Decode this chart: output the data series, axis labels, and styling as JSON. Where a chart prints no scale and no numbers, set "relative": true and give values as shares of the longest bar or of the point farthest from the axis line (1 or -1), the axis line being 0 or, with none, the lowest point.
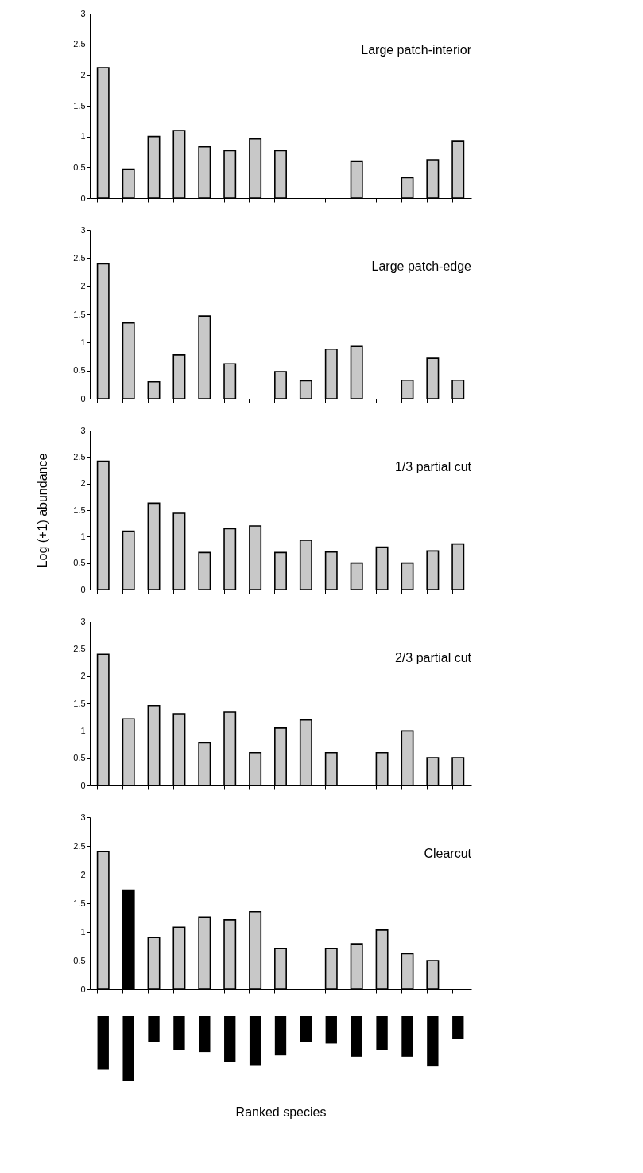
{
  "chart_data": [
    {
      "type": "bar",
      "title": "Large patch-interior",
      "categories": [
        null,
        null,
        null,
        null,
        null,
        null,
        null,
        null,
        null,
        null,
        null,
        null,
        null,
        null,
        null
      ],
      "values": [
        2.12,
        0.47,
        1.0,
        1.1,
        0.83,
        0.77,
        0.96,
        0.77,
        null,
        null,
        0.6,
        null,
        0.33,
        0.62,
        0.93
      ],
      "color": "#c8c8c8",
      "ylim": [
        0,
        3
      ],
      "yticks": [
        0,
        0.5,
        1,
        1.5,
        2,
        2.5,
        3
      ],
      "tick_labels": "y"
    },
    {
      "type": "bar",
      "title": "Large patch-edge",
      "categories": [
        null,
        null,
        null,
        null,
        null,
        null,
        null,
        null,
        null,
        null,
        null,
        null,
        null,
        null,
        null
      ],
      "values": [
        2.4,
        1.35,
        0.3,
        0.78,
        1.47,
        0.62,
        null,
        0.48,
        0.32,
        0.88,
        0.93,
        null,
        0.33,
        0.72,
        0.33
      ],
      "color": "#c8c8c8",
      "ylim": [
        0,
        3
      ],
      "yticks": [
        0,
        0.5,
        1,
        1.5,
        2,
        2.5,
        3
      ],
      "tick_labels": "y"
    },
    {
      "type": "bar",
      "title": "1/3 partial cut",
      "ylabel": "Log (+1) abundance",
      "categories": [
        null,
        null,
        null,
        null,
        null,
        null,
        null,
        null,
        null,
        null,
        null,
        null,
        null,
        null,
        null
      ],
      "values": [
        2.42,
        1.1,
        1.63,
        1.44,
        0.7,
        1.15,
        1.2,
        0.7,
        0.93,
        0.71,
        0.5,
        0.8,
        0.5,
        0.73,
        0.86
      ],
      "color": "#c8c8c8",
      "ylim": [
        0,
        3
      ],
      "yticks": [
        0,
        0.5,
        1,
        1.5,
        2,
        2.5,
        3
      ],
      "tick_labels": "y"
    },
    {
      "type": "bar",
      "title": "2/3 partial cut",
      "categories": [
        null,
        null,
        null,
        null,
        null,
        null,
        null,
        null,
        null,
        null,
        null,
        null,
        null,
        null,
        null
      ],
      "values": [
        2.4,
        1.22,
        1.46,
        1.31,
        0.78,
        1.34,
        0.6,
        1.05,
        1.2,
        0.6,
        null,
        0.6,
        1.0,
        0.51,
        0.51
      ],
      "color": "#c8c8c8",
      "ylim": [
        0,
        3
      ],
      "yticks": [
        0,
        0.5,
        1,
        1.5,
        2,
        2.5,
        3
      ],
      "tick_labels": "y"
    },
    {
      "type": "bar",
      "title": "Clearcut",
      "categories": [
        null,
        null,
        null,
        null,
        null,
        null,
        null,
        null,
        null,
        null,
        null,
        null,
        null,
        null,
        null
      ],
      "values": [
        2.4,
        1.73,
        0.9,
        1.08,
        1.26,
        1.21,
        1.35,
        0.71,
        null,
        0.71,
        0.79,
        1.03,
        0.62,
        0.5,
        null
      ],
      "colors": [
        "#c8c8c8",
        "#000000",
        "#c8c8c8",
        "#c8c8c8",
        "#c8c8c8",
        "#c8c8c8",
        "#c8c8c8",
        "#c8c8c8",
        "#c8c8c8",
        "#c8c8c8",
        "#c8c8c8",
        "#c8c8c8",
        "#c8c8c8",
        "#c8c8c8",
        "#c8c8c8"
      ],
      "ylim": [
        0,
        3
      ],
      "yticks": [
        0,
        0.5,
        1,
        1.5,
        2,
        2.5,
        3
      ],
      "tick_labels": "y"
    },
    {
      "type": "bar",
      "relative": true,
      "xlabel": "Ranked species",
      "categories": [
        null,
        null,
        null,
        null,
        null,
        null,
        null,
        null,
        null,
        null,
        null,
        null,
        null,
        null,
        null
      ],
      "values": [
        -0.81,
        -1,
        -0.39,
        -0.52,
        -0.55,
        -0.7,
        -0.75,
        -0.6,
        -0.39,
        -0.42,
        -0.62,
        -0.52,
        -0.62,
        -0.77,
        -0.35
      ],
      "color": "#000000",
      "tick_labels": false
    }
  ]
}
